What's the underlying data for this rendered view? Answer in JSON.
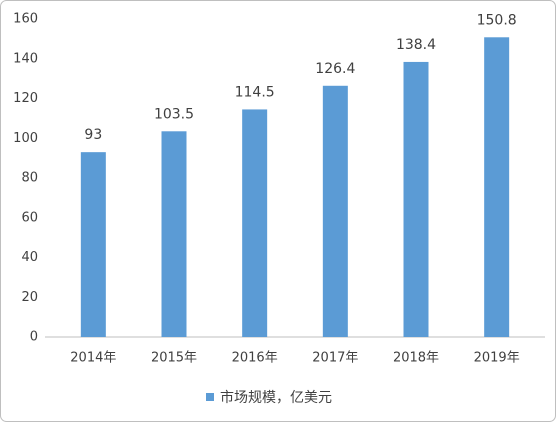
{
  "chart_data": {
    "type": "bar",
    "categories": [
      "2014年",
      "2015年",
      "2016年",
      "2017年",
      "2018年",
      "2019年"
    ],
    "series": [
      {
        "name": "市场规模，亿美元",
        "color": "#5b9bd5",
        "values": [
          93,
          103.5,
          114.5,
          126.4,
          138.4,
          150.8
        ]
      }
    ],
    "ylim": [
      0,
      160
    ],
    "yticks": [
      0,
      20,
      40,
      60,
      80,
      100,
      120,
      140,
      160
    ],
    "grid": false,
    "data_labels": true,
    "legend": "bottom"
  }
}
